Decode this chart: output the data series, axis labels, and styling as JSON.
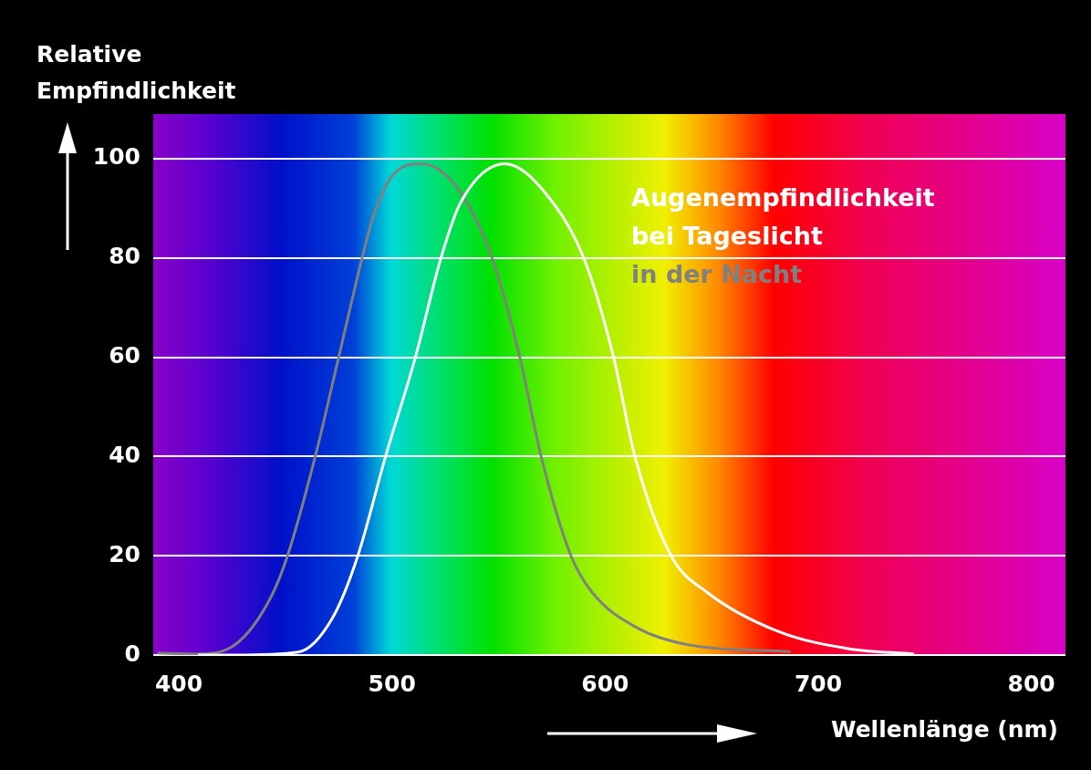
{
  "chart_data": {
    "type": "line",
    "xlabel": "Wellenlänge (nm)",
    "ylabel": "Relative Empfindlichkeit",
    "legend_title": "Augenempfindlichkeit",
    "legend": "top right",
    "grid": "y",
    "line_style": "solid",
    "xlim": [
      388,
      816
    ],
    "ylim": [
      0,
      109
    ],
    "xticks": [
      400,
      500,
      600,
      700,
      800
    ],
    "yticks": [
      0,
      20,
      40,
      60,
      80,
      100
    ],
    "series": [
      {
        "name": "bei Tageslicht",
        "color": "#ffffff",
        "x": [
          409,
          426,
          456,
          472,
          484,
          497,
          511,
          523,
          532,
          553,
          574,
          590,
          604,
          614,
          631,
          648,
          681,
          714,
          745
        ],
        "values": [
          0,
          0,
          0.6,
          7.4,
          20,
          40,
          60,
          80,
          91,
          99,
          92,
          80,
          60,
          40,
          20,
          12.6,
          4.8,
          1.3,
          0.2
        ]
      },
      {
        "name": "in der Nacht",
        "color": "#808080",
        "x": [
          390,
          408,
          427,
          443,
          451,
          464,
          475,
          486,
          491,
          500,
          514,
          527,
          538,
          547,
          560,
          570,
          584,
          594,
          615,
          640,
          687
        ],
        "values": [
          0.4,
          0.2,
          2.3,
          11.5,
          20,
          40,
          60,
          80,
          88,
          96.5,
          99,
          96,
          89,
          80,
          60,
          40,
          20,
          12.6,
          5.5,
          2,
          0.7
        ]
      }
    ]
  }
}
